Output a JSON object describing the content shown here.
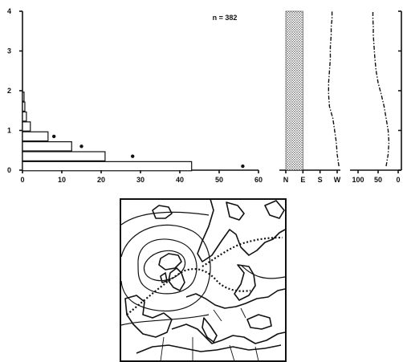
{
  "chart_data": [
    {
      "type": "bar",
      "orientation": "horizontal",
      "annotation": "n = 382",
      "y": [
        0.1,
        0.35,
        0.6,
        0.85,
        1.1,
        1.35,
        1.6,
        1.85
      ],
      "values": [
        43,
        21,
        12.5,
        6.5,
        2,
        1,
        0.6,
        0.4
      ],
      "points": [
        {
          "x": 56,
          "y": 0.1
        },
        {
          "x": 28,
          "y": 0.35
        },
        {
          "x": 15,
          "y": 0.6
        },
        {
          "x": 8,
          "y": 0.85
        }
      ],
      "xlim": [
        0,
        60
      ],
      "ylim": [
        0,
        4
      ],
      "xticks": [
        "0",
        "10",
        "20",
        "30",
        "40",
        "50",
        "60"
      ],
      "yticks": [
        "0",
        "1",
        "2",
        "3",
        "4"
      ]
    },
    {
      "type": "line",
      "xlim_labels": [
        "N",
        "E",
        "S",
        "W"
      ],
      "shaded_band": [
        "N",
        "E"
      ],
      "ylim": [
        0,
        4
      ],
      "x_index": [
        3.1,
        3.0,
        2.95,
        2.85,
        2.75,
        2.55,
        2.5,
        2.5,
        2.55,
        2.6,
        2.6,
        2.65,
        2.65,
        2.7,
        2.7
      ],
      "y": [
        0.1,
        0.4,
        0.7,
        1.0,
        1.3,
        1.6,
        1.9,
        2.2,
        2.5,
        2.8,
        3.1,
        3.4,
        3.6,
        3.8,
        4.0
      ]
    },
    {
      "type": "line",
      "xticks": [
        "100",
        "50",
        "0"
      ],
      "xlim": [
        100,
        0
      ],
      "ylim": [
        0,
        4
      ],
      "x": [
        30,
        25,
        23,
        25,
        30,
        35,
        42,
        50,
        55,
        58,
        60,
        62,
        62,
        63,
        63
      ],
      "y": [
        0.1,
        0.4,
        0.7,
        1.0,
        1.3,
        1.6,
        1.9,
        2.2,
        2.5,
        2.8,
        3.1,
        3.4,
        3.6,
        3.8,
        4.0
      ]
    }
  ],
  "map": {
    "panel_name": "synoptic-map"
  }
}
